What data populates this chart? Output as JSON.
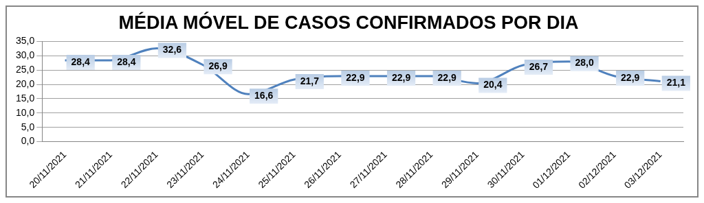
{
  "chart_data": {
    "type": "line",
    "title": "MÉDIA MÓVEL DE CASOS CONFIRMADOS POR DIA",
    "categories": [
      "20/11/2021",
      "21/11/2021",
      "22/11/2021",
      "23/11/2021",
      "24/11/2021",
      "25/11/2021",
      "26/11/2021",
      "27/11/2021",
      "28/11/2021",
      "29/11/2021",
      "30/11/2021",
      "01/12/2021",
      "02/12/2021",
      "03/12/2021"
    ],
    "series": [
      {
        "color": "#4f81bd",
        "values": [
          28.4,
          28.4,
          32.6,
          26.9,
          16.6,
          21.7,
          22.9,
          22.9,
          22.9,
          20.4,
          26.7,
          28.0,
          22.9,
          21.1
        ],
        "value_labels": [
          "28,4",
          "28,4",
          "32,6",
          "26,9",
          "16,6",
          "21,7",
          "22,9",
          "22,9",
          "22,9",
          "20,4",
          "26,7",
          "28,0",
          "22,9",
          "21,1"
        ]
      }
    ],
    "ylim": [
      0,
      35
    ],
    "yticks": [
      {
        "value": 0,
        "label": "0,0"
      },
      {
        "value": 5,
        "label": "5,0"
      },
      {
        "value": 10,
        "label": "10,0"
      },
      {
        "value": 15,
        "label": "15,0"
      },
      {
        "value": 20,
        "label": "20,0"
      },
      {
        "value": 25,
        "label": "25,0"
      },
      {
        "value": 30,
        "label": "30,0"
      },
      {
        "value": 35,
        "label": "35,0"
      }
    ],
    "grid": "y",
    "legend": false,
    "marker": "none",
    "line_style": "solid"
  }
}
